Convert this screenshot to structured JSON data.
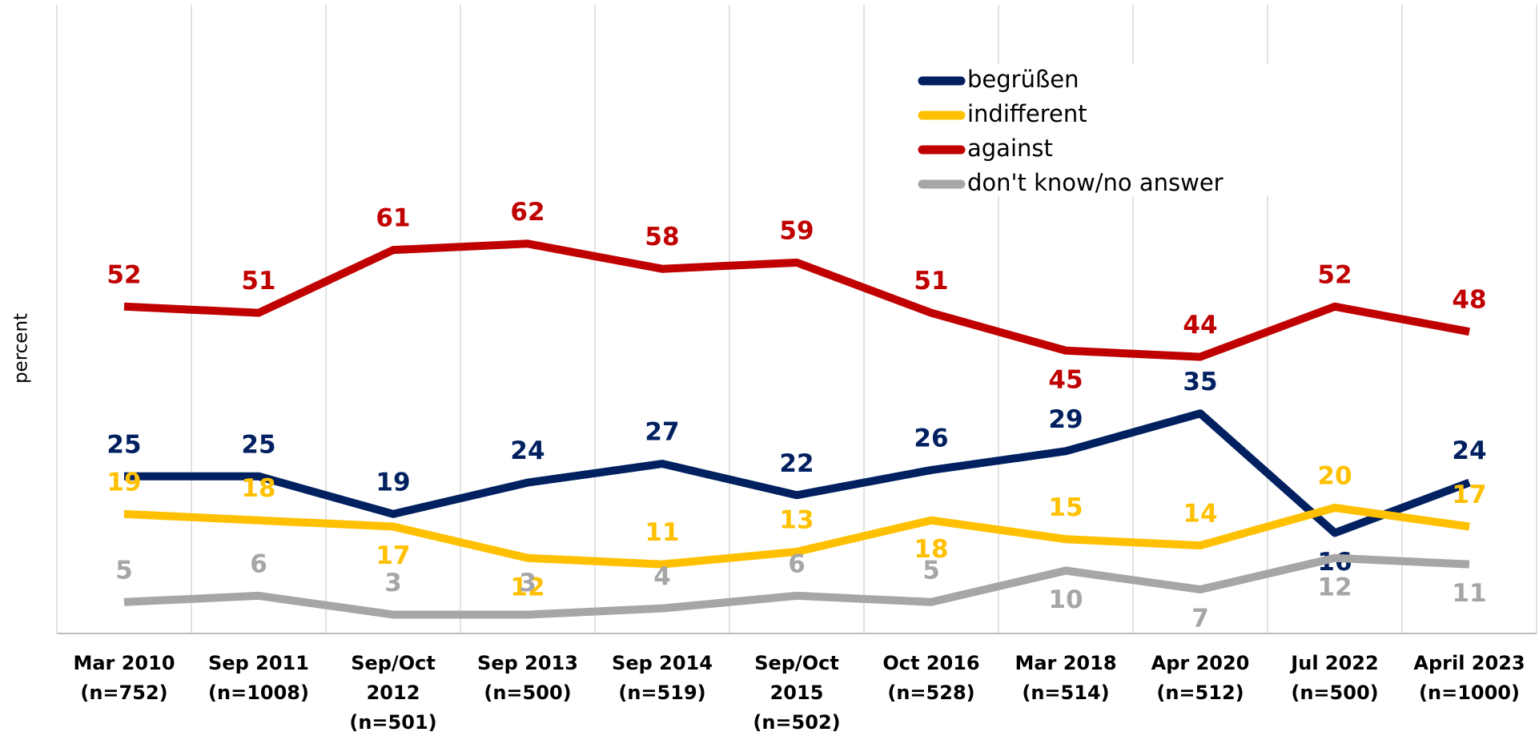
{
  "chart_data": {
    "type": "line",
    "y_label": "percent",
    "categories": [
      [
        "Mar 2010",
        "(n=752)"
      ],
      [
        "Sep 2011",
        "(n=1008)"
      ],
      [
        "Sep/Oct",
        "2012",
        "(n=501)"
      ],
      [
        "Sep 2013",
        "(n=500)"
      ],
      [
        "Sep 2014",
        "(n=519)"
      ],
      [
        "Sep/Oct",
        "2015",
        "(n=502)"
      ],
      [
        "Oct 2016",
        "(n=528)"
      ],
      [
        "Mar 2018",
        "(n=514)"
      ],
      [
        "Apr 2020",
        "(n=512)"
      ],
      [
        "Jul 2022",
        "(n=500)"
      ],
      [
        "April 2023",
        "(n=1000)"
      ]
    ],
    "series": [
      {
        "name": "begrüßen",
        "color": "#002060",
        "values": [
          25,
          25,
          19,
          24,
          27,
          22,
          26,
          29,
          35,
          16,
          24
        ]
      },
      {
        "name": "indifferent",
        "color": "#FFC000",
        "values": [
          19,
          18,
          17,
          12,
          11,
          13,
          18,
          15,
          14,
          20,
          17
        ]
      },
      {
        "name": "against",
        "color": "#C00000",
        "values": [
          52,
          51,
          61,
          62,
          58,
          59,
          51,
          45,
          44,
          52,
          48
        ]
      },
      {
        "name": "don't know/no answer",
        "color": "#A6A6A6",
        "values": [
          5,
          6,
          3,
          3,
          4,
          6,
          5,
          10,
          7,
          12,
          11
        ]
      }
    ],
    "ylim": [
      0,
      100
    ],
    "grid": true
  }
}
